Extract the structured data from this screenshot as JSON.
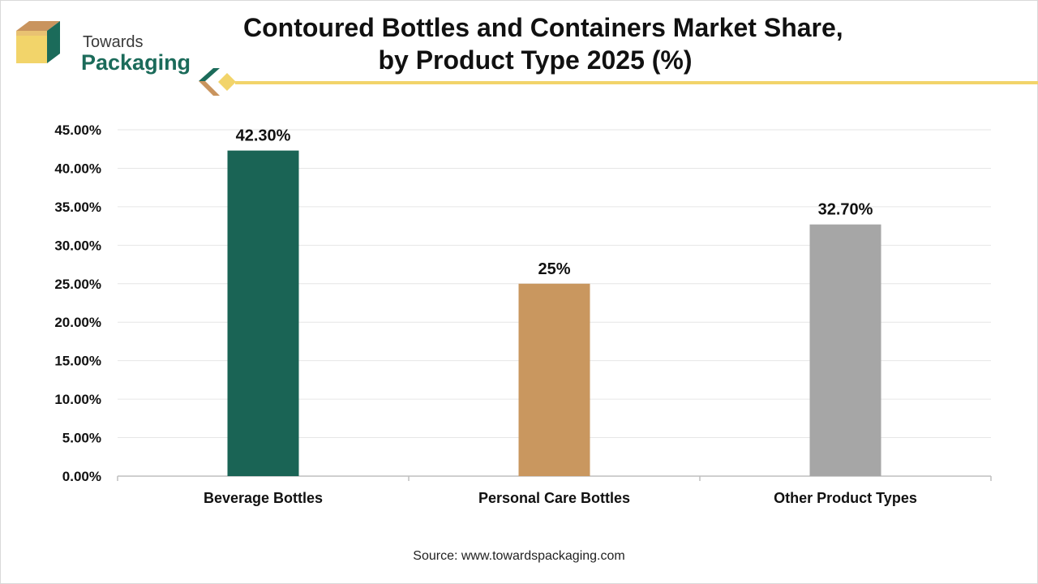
{
  "logo": {
    "line1": "Towards",
    "line2": "Packaging"
  },
  "title_lines": [
    "Contoured Bottles and Containers Market Share,",
    "by Product Type 2025 (%)"
  ],
  "source": "Source: www.towardspackaging.com",
  "colors": {
    "accent_line": "#f2d46a",
    "brand_green": "#1b6b5a",
    "brand_tan": "#c9945e"
  },
  "chart_data": {
    "type": "bar",
    "title": "Contoured Bottles and Containers Market Share, by Product Type 2025 (%)",
    "xlabel": "",
    "ylabel": "",
    "ylim": [
      0,
      45
    ],
    "ytick_step": 5,
    "ytick_labels": [
      "0.00%",
      "5.00%",
      "10.00%",
      "15.00%",
      "20.00%",
      "25.00%",
      "30.00%",
      "35.00%",
      "40.00%",
      "45.00%"
    ],
    "grid": true,
    "categories": [
      "Beverage Bottles",
      "Personal Care Bottles",
      "Other Product Types"
    ],
    "values": [
      42.3,
      25,
      32.7
    ],
    "data_labels": [
      "42.30%",
      "25%",
      "32.70%"
    ],
    "bar_colors": [
      "#1a6455",
      "#c9975f",
      "#a6a6a6"
    ]
  }
}
